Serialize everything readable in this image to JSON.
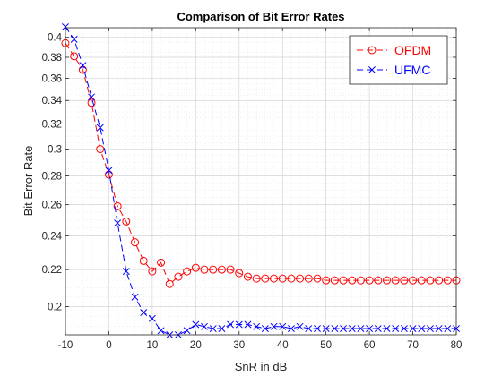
{
  "chart_data": {
    "type": "line",
    "title": "Comparison of Bit Error Rates",
    "xlabel": "SnR in dB",
    "ylabel": "Bit Error Rate",
    "xlim": [
      -10,
      80
    ],
    "ylim": [
      0.186,
      0.41
    ],
    "yscale": "log",
    "grid": true,
    "minor_grid": true,
    "legend_position": "top-right",
    "x_ticks": [
      -10,
      0,
      10,
      20,
      30,
      40,
      50,
      60,
      70,
      80
    ],
    "x_tick_labels": [
      "-10",
      "0",
      "10",
      "20",
      "30",
      "40",
      "50",
      "60",
      "70",
      "80"
    ],
    "y_ticks": [
      0.2,
      0.22,
      0.24,
      0.26,
      0.28,
      0.3,
      0.32,
      0.34,
      0.36,
      0.38,
      0.4
    ],
    "y_tick_labels": [
      "0.2",
      "0.22",
      "0.24",
      "0.26",
      "0.28",
      "0.3",
      "0.32",
      "0.34",
      "0.36",
      "0.38",
      "0.4"
    ],
    "x": [
      -10,
      -8,
      -6,
      -4,
      -2,
      0,
      2,
      4,
      6,
      8,
      10,
      12,
      14,
      16,
      18,
      20,
      22,
      24,
      26,
      28,
      30,
      32,
      34,
      36,
      38,
      40,
      42,
      44,
      46,
      48,
      50,
      52,
      54,
      56,
      58,
      60,
      62,
      64,
      66,
      68,
      70,
      72,
      74,
      76,
      78,
      80
    ],
    "series": [
      {
        "name": "OFDM",
        "color": "#ff0000",
        "marker": "circle",
        "line_style": "dashed",
        "values": [
          0.394,
          0.381,
          0.368,
          0.338,
          0.3,
          0.281,
          0.259,
          0.249,
          0.236,
          0.225,
          0.219,
          0.224,
          0.212,
          0.216,
          0.219,
          0.221,
          0.22,
          0.22,
          0.22,
          0.22,
          0.218,
          0.216,
          0.215,
          0.215,
          0.215,
          0.215,
          0.215,
          0.215,
          0.215,
          0.215,
          0.214,
          0.214,
          0.214,
          0.214,
          0.214,
          0.214,
          0.214,
          0.214,
          0.214,
          0.214,
          0.214,
          0.214,
          0.214,
          0.214,
          0.214,
          0.214
        ]
      },
      {
        "name": "UFMC",
        "color": "#0000ff",
        "marker": "x",
        "line_style": "dashed",
        "values": [
          0.411,
          0.398,
          0.372,
          0.343,
          0.317,
          0.284,
          0.248,
          0.219,
          0.205,
          0.197,
          0.194,
          0.188,
          0.186,
          0.186,
          0.188,
          0.191,
          0.19,
          0.189,
          0.189,
          0.191,
          0.191,
          0.191,
          0.19,
          0.189,
          0.19,
          0.19,
          0.189,
          0.19,
          0.189,
          0.189,
          0.189,
          0.189,
          0.189,
          0.189,
          0.189,
          0.189,
          0.189,
          0.189,
          0.189,
          0.189,
          0.189,
          0.189,
          0.189,
          0.189,
          0.189,
          0.189
        ]
      }
    ]
  }
}
